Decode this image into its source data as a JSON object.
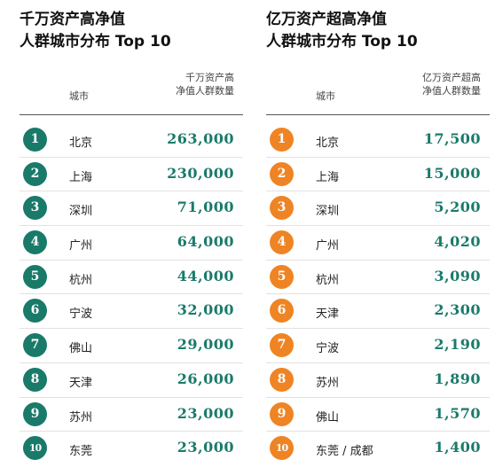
{
  "left": {
    "title_line1": "千万资产高净值",
    "title_line2": "人群城市分布 Top 10",
    "col_city": "城市",
    "col_count_line1": "千万资产高",
    "col_count_line2": "净值人群数量",
    "rows": [
      {
        "rank": "1",
        "city": "北京",
        "value": "263,000"
      },
      {
        "rank": "2",
        "city": "上海",
        "value": "230,000"
      },
      {
        "rank": "3",
        "city": "深圳",
        "value": "71,000"
      },
      {
        "rank": "4",
        "city": "广州",
        "value": "64,000"
      },
      {
        "rank": "5",
        "city": "杭州",
        "value": "44,000"
      },
      {
        "rank": "6",
        "city": "宁波",
        "value": "32,000"
      },
      {
        "rank": "7",
        "city": "佛山",
        "value": "29,000"
      },
      {
        "rank": "8",
        "city": "天津",
        "value": "26,000"
      },
      {
        "rank": "9",
        "city": "苏州",
        "value": "23,000"
      },
      {
        "rank": "10",
        "city": "东莞",
        "value": "23,000"
      }
    ]
  },
  "right": {
    "title_line1": "亿万资产超高净值",
    "title_line2": "人群城市分布 Top 10",
    "col_city": "城市",
    "col_count_line1": "亿万资产超高",
    "col_count_line2": "净值人群数量",
    "rows": [
      {
        "rank": "1",
        "city": "北京",
        "value": "17,500"
      },
      {
        "rank": "2",
        "city": "上海",
        "value": "15,000"
      },
      {
        "rank": "3",
        "city": "深圳",
        "value": "5,200"
      },
      {
        "rank": "4",
        "city": "广州",
        "value": "4,020"
      },
      {
        "rank": "5",
        "city": "杭州",
        "value": "3,090"
      },
      {
        "rank": "6",
        "city": "天津",
        "value": "2,300"
      },
      {
        "rank": "7",
        "city": "宁波",
        "value": "2,190"
      },
      {
        "rank": "8",
        "city": "苏州",
        "value": "1,890"
      },
      {
        "rank": "9",
        "city": "佛山",
        "value": "1,570"
      },
      {
        "rank": "10",
        "city": "东莞 / 成都",
        "value": "1,400"
      }
    ]
  },
  "colors": {
    "teal": "#1a7a6a",
    "orange": "#ef8424"
  }
}
